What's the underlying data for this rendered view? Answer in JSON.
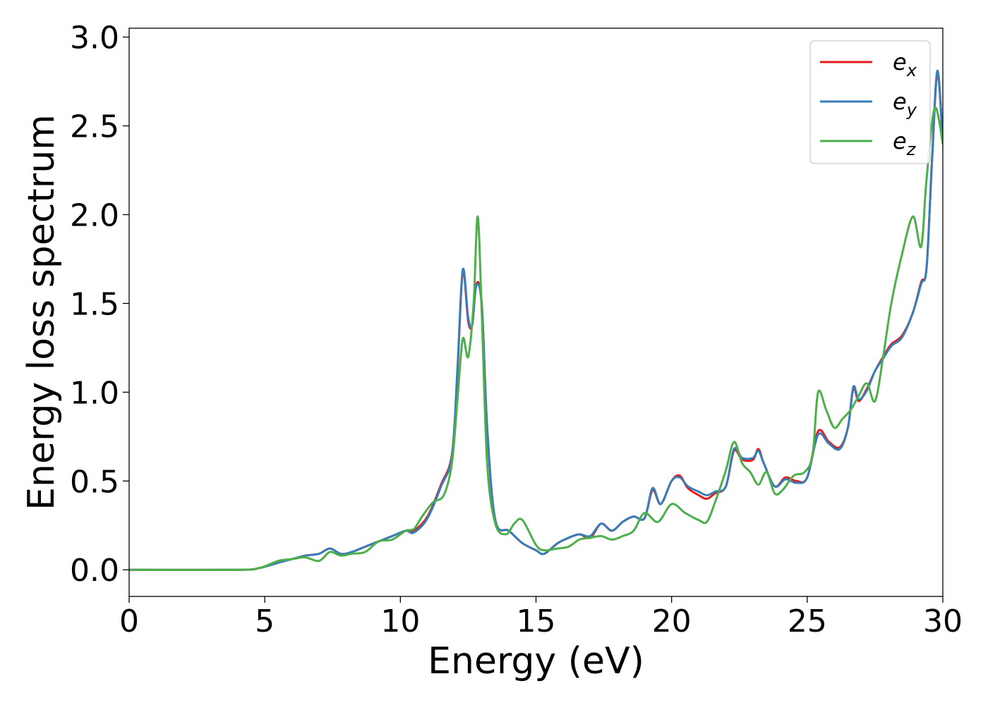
{
  "chart_data": {
    "type": "line",
    "title": "",
    "xlabel": "Energy (eV)",
    "ylabel": "Energy loss spectrum",
    "xlim": [
      0,
      30
    ],
    "ylim": [
      -0.15,
      3.05
    ],
    "xticks": [
      0,
      5,
      10,
      15,
      20,
      25,
      30
    ],
    "xtick_labels": [
      "0",
      "5",
      "10",
      "15",
      "20",
      "25",
      "30"
    ],
    "yticks": [
      0.0,
      0.5,
      1.0,
      1.5,
      2.0,
      2.5,
      3.0
    ],
    "ytick_labels": [
      "0.0",
      "0.5",
      "1.0",
      "1.5",
      "2.0",
      "2.5",
      "3.0"
    ],
    "grid": false,
    "legend_position": "top-right",
    "series": [
      {
        "name": "e_x",
        "legend_base": "e",
        "legend_sub": "x",
        "color": "#e41a1c",
        "x": [
          0,
          4,
          4.8,
          5.5,
          6,
          6.5,
          7,
          7.4,
          7.8,
          8.2,
          8.7,
          9.2,
          9.7,
          10.2,
          10.5,
          11,
          11.5,
          11.9,
          12.1,
          12.3,
          12.5,
          12.65,
          12.8,
          13.0,
          13.2,
          13.5,
          14,
          14.5,
          15,
          15.3,
          15.8,
          16.2,
          16.6,
          17,
          17.4,
          17.8,
          18.2,
          18.6,
          19,
          19.3,
          19.6,
          20,
          20.3,
          20.6,
          21,
          21.3,
          21.6,
          22,
          22.3,
          22.6,
          23,
          23.2,
          23.4,
          23.8,
          24.2,
          24.6,
          25,
          25.4,
          25.8,
          26.2,
          26.5,
          26.7,
          26.9,
          27.2,
          27.5,
          27.8,
          28.1,
          28.5,
          28.9,
          29.2,
          29.4,
          29.6,
          29.8,
          30
        ],
        "y": [
          0,
          0,
          0.01,
          0.04,
          0.06,
          0.08,
          0.09,
          0.12,
          0.09,
          0.1,
          0.13,
          0.16,
          0.19,
          0.22,
          0.22,
          0.3,
          0.48,
          0.65,
          1.1,
          1.68,
          1.4,
          1.38,
          1.61,
          1.5,
          0.8,
          0.28,
          0.22,
          0.15,
          0.11,
          0.09,
          0.15,
          0.18,
          0.2,
          0.18,
          0.26,
          0.22,
          0.27,
          0.3,
          0.29,
          0.45,
          0.37,
          0.5,
          0.53,
          0.46,
          0.42,
          0.4,
          0.43,
          0.47,
          0.67,
          0.62,
          0.62,
          0.68,
          0.6,
          0.47,
          0.52,
          0.5,
          0.52,
          0.78,
          0.72,
          0.69,
          0.8,
          1.02,
          0.95,
          1.02,
          1.12,
          1.2,
          1.27,
          1.32,
          1.45,
          1.62,
          1.7,
          2.3,
          2.8,
          2.4
        ]
      },
      {
        "name": "e_y",
        "legend_base": "e",
        "legend_sub": "y",
        "color": "#377eb8",
        "x": [
          0,
          4,
          4.8,
          5.5,
          6,
          6.5,
          7,
          7.4,
          7.8,
          8.2,
          8.7,
          9.2,
          9.7,
          10.2,
          10.5,
          11,
          11.5,
          11.9,
          12.1,
          12.3,
          12.5,
          12.65,
          12.8,
          13.0,
          13.2,
          13.5,
          14,
          14.5,
          15,
          15.3,
          15.8,
          16.2,
          16.6,
          17,
          17.4,
          17.8,
          18.2,
          18.6,
          19,
          19.3,
          19.6,
          20,
          20.3,
          20.6,
          21,
          21.3,
          21.6,
          22,
          22.3,
          22.6,
          23,
          23.2,
          23.4,
          23.8,
          24.2,
          24.6,
          25,
          25.4,
          25.8,
          26.2,
          26.5,
          26.7,
          26.9,
          27.2,
          27.5,
          27.8,
          28.1,
          28.5,
          28.9,
          29.2,
          29.4,
          29.6,
          29.8,
          30
        ],
        "y": [
          0,
          0,
          0.01,
          0.04,
          0.06,
          0.08,
          0.09,
          0.12,
          0.09,
          0.1,
          0.13,
          0.16,
          0.19,
          0.22,
          0.21,
          0.29,
          0.47,
          0.64,
          1.12,
          1.69,
          1.42,
          1.38,
          1.6,
          1.49,
          0.8,
          0.28,
          0.22,
          0.15,
          0.11,
          0.09,
          0.15,
          0.18,
          0.2,
          0.19,
          0.26,
          0.22,
          0.27,
          0.3,
          0.29,
          0.46,
          0.37,
          0.5,
          0.52,
          0.47,
          0.44,
          0.42,
          0.44,
          0.47,
          0.68,
          0.63,
          0.63,
          0.67,
          0.6,
          0.47,
          0.51,
          0.49,
          0.52,
          0.76,
          0.71,
          0.68,
          0.8,
          1.03,
          0.96,
          1.01,
          1.12,
          1.19,
          1.26,
          1.31,
          1.45,
          1.61,
          1.7,
          2.3,
          2.81,
          2.4
        ]
      },
      {
        "name": "e_z",
        "legend_base": "e",
        "legend_sub": "z",
        "color": "#4daf4a",
        "x": [
          0,
          4,
          4.8,
          5.5,
          6,
          6.5,
          7,
          7.4,
          7.8,
          8.2,
          8.7,
          9.2,
          9.7,
          10.2,
          10.5,
          10.8,
          11.2,
          11.6,
          11.9,
          12.1,
          12.3,
          12.5,
          12.7,
          12.85,
          13.0,
          13.2,
          13.5,
          13.9,
          14.2,
          14.5,
          15,
          15.3,
          15.8,
          16.2,
          16.6,
          17,
          17.4,
          17.8,
          18.2,
          18.6,
          19,
          19.5,
          20,
          20.5,
          21,
          21.3,
          21.6,
          22,
          22.3,
          22.6,
          22.9,
          23.2,
          23.5,
          23.8,
          24.1,
          24.5,
          24.9,
          25.2,
          25.4,
          25.7,
          26,
          26.3,
          26.6,
          26.9,
          27.2,
          27.5,
          27.8,
          28.1,
          28.5,
          28.9,
          29.2,
          29.4,
          29.7,
          30
        ],
        "y": [
          0,
          0,
          0.01,
          0.05,
          0.06,
          0.07,
          0.05,
          0.1,
          0.08,
          0.09,
          0.1,
          0.16,
          0.17,
          0.22,
          0.23,
          0.3,
          0.38,
          0.42,
          0.6,
          0.95,
          1.3,
          1.2,
          1.5,
          1.99,
          1.45,
          0.6,
          0.26,
          0.2,
          0.26,
          0.28,
          0.14,
          0.11,
          0.12,
          0.13,
          0.17,
          0.18,
          0.19,
          0.17,
          0.19,
          0.22,
          0.32,
          0.27,
          0.37,
          0.32,
          0.28,
          0.27,
          0.38,
          0.56,
          0.72,
          0.6,
          0.55,
          0.48,
          0.55,
          0.43,
          0.45,
          0.53,
          0.55,
          0.65,
          1.0,
          0.9,
          0.8,
          0.85,
          0.9,
          0.98,
          1.05,
          0.95,
          1.2,
          1.5,
          1.78,
          1.99,
          1.82,
          2.2,
          2.6,
          2.4
        ]
      }
    ]
  }
}
